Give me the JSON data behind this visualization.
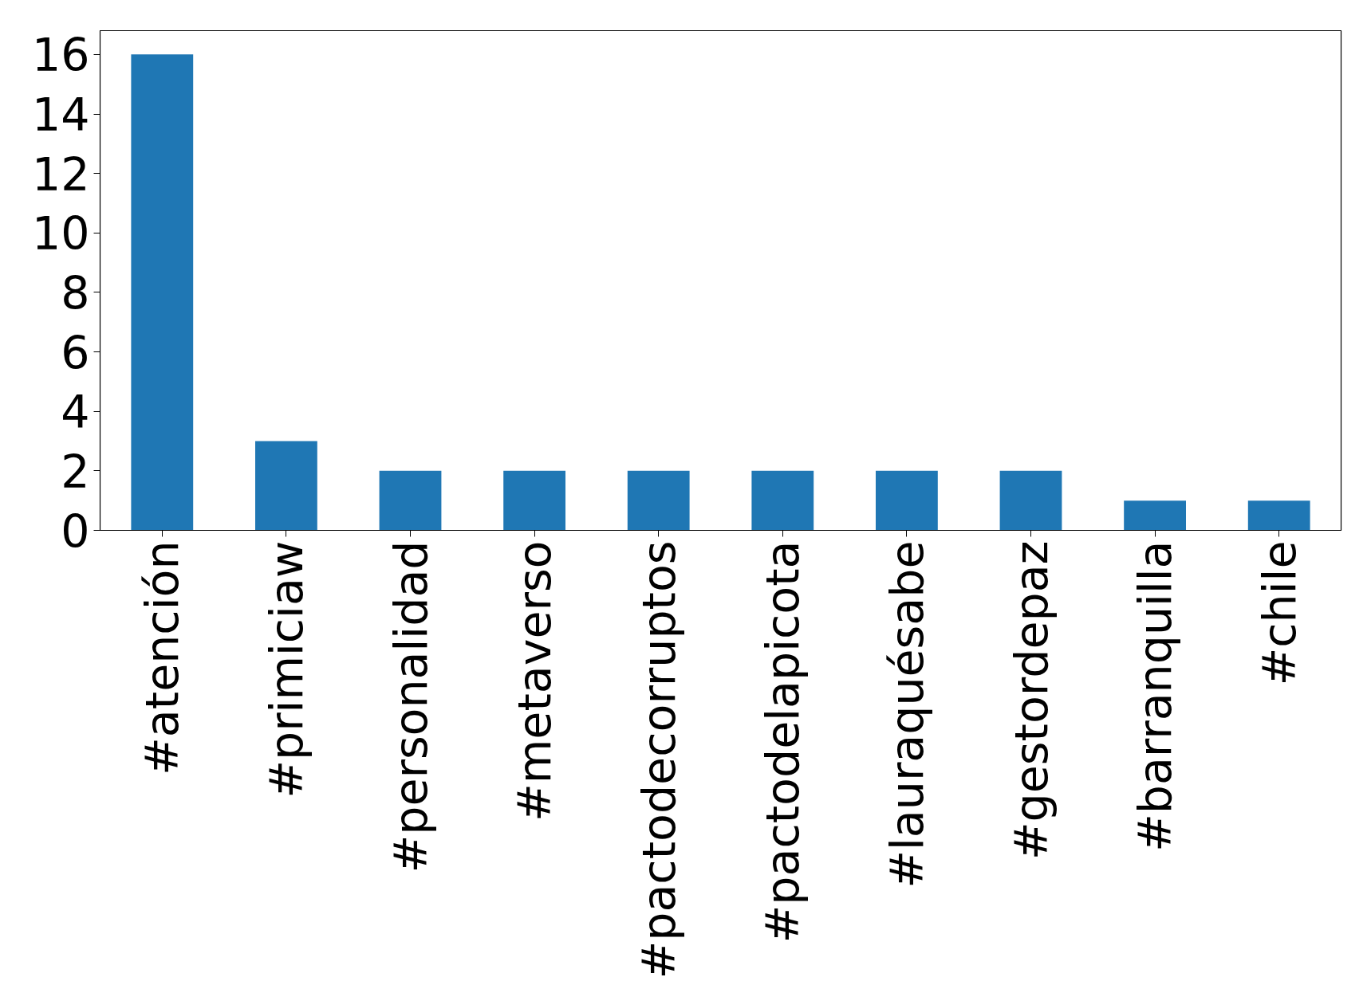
{
  "chart_data": {
    "type": "bar",
    "categories": [
      "#atención",
      "#primiciaw",
      "#personalidad",
      "#metaverso",
      "#pactodecorruptos",
      "#pactodelapicota",
      "#lauraquésabe",
      "#gestordepaz",
      "#barranquilla",
      "#chile"
    ],
    "values": [
      16,
      3,
      2,
      2,
      2,
      2,
      2,
      2,
      1,
      1
    ],
    "color": "#1f77b4",
    "ylim": [
      0,
      16.8
    ],
    "yticks": [
      0,
      2,
      4,
      6,
      8,
      10,
      12,
      14,
      16
    ],
    "grid": false
  }
}
